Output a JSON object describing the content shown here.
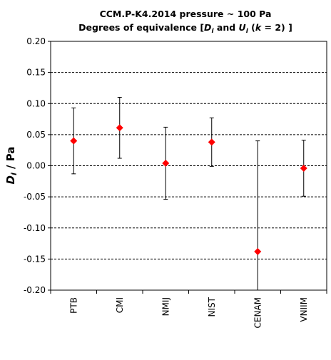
{
  "chart_data": {
    "type": "scatter",
    "title_line1": "CCM.P-K4.2014 pressure ~ 100 Pa",
    "title_line2": {
      "pre": "Degrees of equivalence [",
      "d_main": "D",
      "d_sub": "i",
      "mid": " and ",
      "u_main": "U",
      "u_sub": "i",
      "paren_open": " (",
      "k": "k",
      "k_rest": " = 2) ]"
    },
    "ylabel": {
      "main": "D",
      "sub": "i",
      "rest": " / Pa"
    },
    "xlabel": "",
    "ylim": [
      -0.2,
      0.2
    ],
    "yticks": [
      "0.20",
      "0.15",
      "0.10",
      "0.05",
      "0.00",
      "-0.05",
      "-0.10",
      "-0.15",
      "-0.20"
    ],
    "ytick_values": [
      0.2,
      0.15,
      0.1,
      0.05,
      0.0,
      -0.05,
      -0.1,
      -0.15,
      -0.2
    ],
    "grid": "horizontal-dashed",
    "categories": [
      "PTB",
      "CMI",
      "NMIJ",
      "NIST",
      "CENAM",
      "VNIIM"
    ],
    "values": [
      0.04,
      0.061,
      0.004,
      0.038,
      -0.138,
      -0.004
    ],
    "uncertainties": [
      0.053,
      0.049,
      0.058,
      0.039,
      0.178,
      0.045
    ],
    "marker_color": "#ff0000",
    "errorbar_color": "#000000"
  }
}
